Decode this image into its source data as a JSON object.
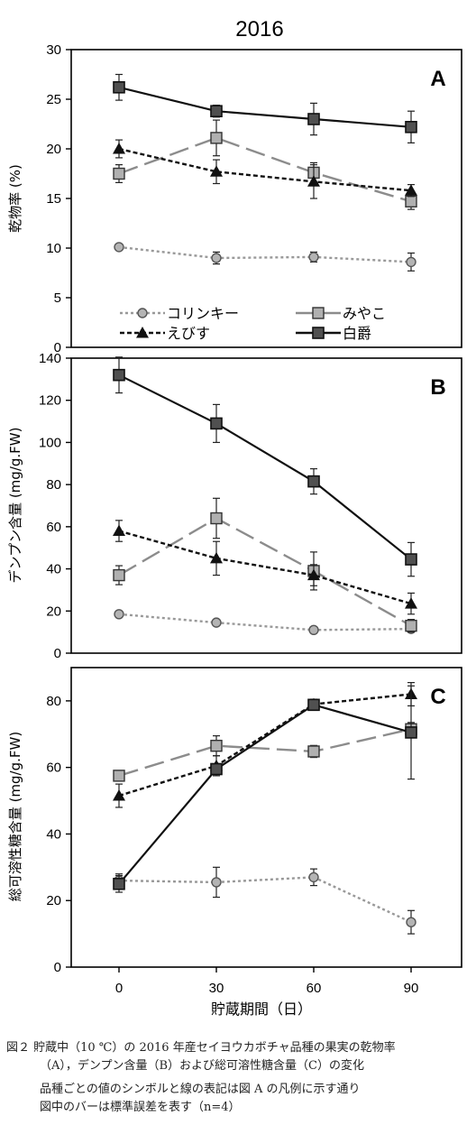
{
  "figure_year": "2016",
  "chart_data": [
    {
      "type": "line",
      "panel": "A",
      "ylabel": "乾物率 (%)",
      "ylim": [
        0,
        30
      ],
      "yticks": [
        0,
        5,
        10,
        15,
        20,
        25,
        30
      ],
      "x": [
        0,
        30,
        60,
        90
      ],
      "series": [
        {
          "name": "コリンキー",
          "values": [
            10.1,
            9.0,
            9.1,
            8.6
          ],
          "err": [
            0.3,
            0.6,
            0.5,
            0.9
          ],
          "color": "#999999",
          "marker": "circle",
          "dash": "3,3"
        },
        {
          "name": "みやこ",
          "values": [
            17.5,
            21.1,
            17.6,
            14.7
          ],
          "err": [
            0.9,
            1.8,
            1.0,
            0.8
          ],
          "color": "#8c8c8c",
          "marker": "square",
          "dash": "22,8"
        },
        {
          "name": "えびす",
          "values": [
            20.0,
            17.7,
            16.7,
            15.8
          ],
          "err": [
            0.9,
            1.2,
            1.7,
            0.6
          ],
          "color": "#111111",
          "marker": "triangle",
          "dash": "5,3"
        },
        {
          "name": "白爵",
          "values": [
            26.2,
            23.8,
            23.0,
            22.2
          ],
          "err": [
            1.3,
            0.6,
            1.6,
            1.6
          ],
          "color": "#111111",
          "marker": "square-dark",
          "dash": ""
        }
      ]
    },
    {
      "type": "line",
      "panel": "B",
      "ylabel": "デンプン含量 (mg/g.FW)",
      "ylim": [
        0,
        140
      ],
      "yticks": [
        0,
        20,
        40,
        60,
        80,
        100,
        120,
        140
      ],
      "x": [
        0,
        30,
        60,
        90
      ],
      "series": [
        {
          "name": "コリンキー",
          "values": [
            18.5,
            14.5,
            11.0,
            11.5
          ],
          "err": [
            1.0,
            1.0,
            1.0,
            1.0
          ]
        },
        {
          "name": "みやこ",
          "values": [
            37.0,
            64.0,
            39.0,
            13.0
          ],
          "err": [
            4.5,
            9.5,
            9.0,
            3.0
          ]
        },
        {
          "name": "えびす",
          "values": [
            58.0,
            45.0,
            37.0,
            23.5
          ],
          "err": [
            5.0,
            8.0,
            5.0,
            5.0
          ]
        },
        {
          "name": "白爵",
          "values": [
            132.0,
            109.0,
            81.5,
            44.5
          ],
          "err": [
            8.5,
            9.0,
            6.0,
            8.0
          ]
        }
      ]
    },
    {
      "type": "line",
      "panel": "C",
      "ylabel": "総可溶性糖含量 (mg/g.FW)",
      "xlabel": "貯蔵期間（日）",
      "ylim": [
        0,
        90
      ],
      "yticks": [
        0,
        20,
        40,
        60,
        80
      ],
      "x": [
        0,
        30,
        60,
        90
      ],
      "series": [
        {
          "name": "コリンキー",
          "values": [
            26.0,
            25.5,
            27.0,
            13.5
          ],
          "err": [
            2.0,
            4.5,
            2.5,
            3.5
          ]
        },
        {
          "name": "みやこ",
          "values": [
            57.5,
            66.5,
            64.8,
            71.5
          ],
          "err": [
            1.0,
            3.0,
            1.8,
            2.0
          ]
        },
        {
          "name": "えびす",
          "values": [
            51.5,
            60.5,
            79.0,
            82.0
          ],
          "err": [
            3.5,
            3.0,
            1.5,
            3.5
          ]
        },
        {
          "name": "白爵",
          "values": [
            25.0,
            59.5,
            78.8,
            70.5
          ],
          "err": [
            2.5,
            1.5,
            1.5,
            14.0
          ]
        }
      ]
    }
  ],
  "legend": [
    "コリンキー",
    "みやこ",
    "えびす",
    "白爵"
  ],
  "caption": {
    "line1": "図２ 貯蔵中（10 ℃）の 2016 年産セイヨウカボチャ品種の果実の乾物率",
    "line2": "（A），デンプン含量（B）および総可溶性糖含量（C）の変化",
    "line3": "品種ごとの値のシンボルと線の表記は図 A の凡例に示す通り",
    "line4": "図中のバーは標準誤差を表す（n=4）"
  }
}
